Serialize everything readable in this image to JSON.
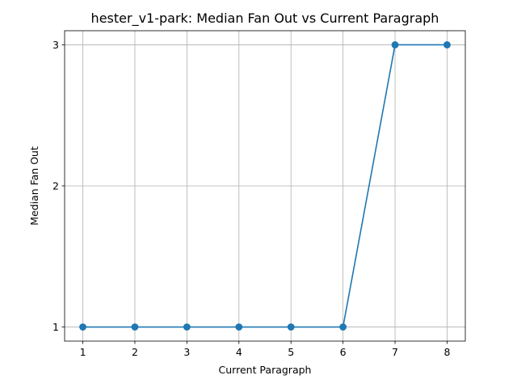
{
  "chart_data": {
    "type": "line",
    "title": "hester_v1-park: Median Fan Out vs Current Paragraph",
    "xlabel": "Current Paragraph",
    "ylabel": "Median Fan Out",
    "x": [
      1,
      2,
      3,
      4,
      5,
      6,
      7,
      8
    ],
    "series": [
      {
        "values": [
          1,
          1,
          1,
          1,
          1,
          1,
          3,
          3
        ],
        "color": "#1f77b4",
        "marker": "circle"
      }
    ],
    "xticks": [
      1,
      2,
      3,
      4,
      5,
      6,
      7,
      8
    ],
    "yticks": [
      1,
      2,
      3
    ],
    "xlim": [
      0.65,
      8.35
    ],
    "ylim": [
      0.9,
      3.1
    ],
    "grid": true
  }
}
